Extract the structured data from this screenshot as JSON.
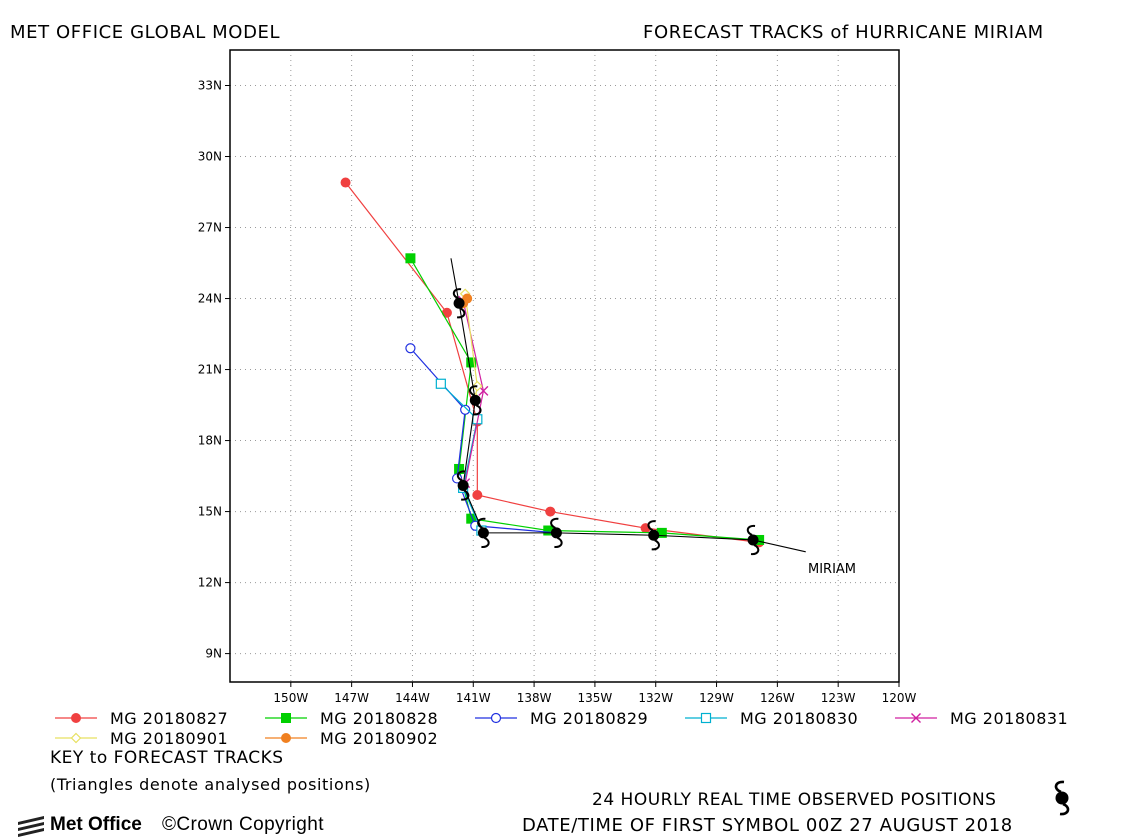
{
  "header": {
    "left_title": "MET OFFICE GLOBAL MODEL",
    "right_title": "FORECAST TRACKS of HURRICANE MIRIAM"
  },
  "map": {
    "storm_label": "MIRIAM",
    "lat_ticks": [
      "33N",
      "30N",
      "27N",
      "24N",
      "21N",
      "18N",
      "15N",
      "12N",
      "9N"
    ],
    "lon_ticks": [
      "150W",
      "147W",
      "144W",
      "141W",
      "138W",
      "135W",
      "132W",
      "129W",
      "126W",
      "123W",
      "120W"
    ],
    "lon_range": [
      -153,
      -120
    ],
    "lat_range": [
      7.8,
      34.5
    ],
    "grid": true
  },
  "chart_data": {
    "type": "scatter",
    "xlabel": "",
    "ylabel": "",
    "xlim": [
      -153,
      -120
    ],
    "ylim": [
      7.8,
      34.5
    ],
    "observed": {
      "color": "#000000",
      "points": [
        {
          "lon": -127.2,
          "lat": 13.8
        },
        {
          "lon": -132.1,
          "lat": 14.0
        },
        {
          "lon": -136.9,
          "lat": 14.1
        },
        {
          "lon": -140.5,
          "lat": 14.1
        },
        {
          "lon": -141.5,
          "lat": 16.1
        },
        {
          "lon": -140.9,
          "lat": 19.7
        },
        {
          "lon": -141.7,
          "lat": 23.8
        }
      ],
      "tail_start": {
        "lon": -142.1,
        "lat": 25.7
      }
    },
    "series": [
      {
        "name": "MG 20180827",
        "color": "#f04040",
        "marker": "filled-circle",
        "points": [
          {
            "lon": -126.9,
            "lat": 13.7
          },
          {
            "lon": -132.5,
            "lat": 14.3
          },
          {
            "lon": -137.2,
            "lat": 15.0
          },
          {
            "lon": -140.8,
            "lat": 15.7
          },
          {
            "lon": -140.8,
            "lat": 18.8
          },
          {
            "lon": -142.3,
            "lat": 23.4
          },
          {
            "lon": -147.3,
            "lat": 28.9
          }
        ]
      },
      {
        "name": "MG 20180828",
        "color": "#00d000",
        "marker": "filled-square",
        "points": [
          {
            "lon": -126.9,
            "lat": 13.8
          },
          {
            "lon": -131.7,
            "lat": 14.1
          },
          {
            "lon": -137.3,
            "lat": 14.2
          },
          {
            "lon": -141.1,
            "lat": 14.7
          },
          {
            "lon": -141.7,
            "lat": 16.8
          },
          {
            "lon": -141.1,
            "lat": 21.3
          },
          {
            "lon": -144.1,
            "lat": 25.7
          }
        ]
      },
      {
        "name": "MG 20180829",
        "color": "#2030e0",
        "marker": "open-circle",
        "points": [
          {
            "lon": -136.9,
            "lat": 14.1
          },
          {
            "lon": -140.9,
            "lat": 14.4
          },
          {
            "lon": -141.8,
            "lat": 16.4
          },
          {
            "lon": -141.4,
            "lat": 19.3
          },
          {
            "lon": -144.1,
            "lat": 21.9
          }
        ]
      },
      {
        "name": "MG 20180830",
        "color": "#00b0d0",
        "marker": "open-square",
        "points": [
          {
            "lon": -140.6,
            "lat": 14.2
          },
          {
            "lon": -141.5,
            "lat": 16.0
          },
          {
            "lon": -140.8,
            "lat": 18.9
          },
          {
            "lon": -142.6,
            "lat": 20.4
          }
        ]
      },
      {
        "name": "MG 20180831",
        "color": "#d020a0",
        "marker": "x",
        "points": [
          {
            "lon": -141.4,
            "lat": 16.2
          },
          {
            "lon": -140.5,
            "lat": 20.1
          },
          {
            "lon": -141.5,
            "lat": 23.9
          }
        ]
      },
      {
        "name": "MG 20180901",
        "color": "#e8e060",
        "marker": "open-diamond",
        "points": [
          {
            "lon": -140.9,
            "lat": 19.8
          },
          {
            "lon": -140.8,
            "lat": 20.3
          },
          {
            "lon": -141.4,
            "lat": 24.2
          }
        ]
      },
      {
        "name": "MG 20180902",
        "color": "#f08020",
        "marker": "filled-circle",
        "points": [
          {
            "lon": -141.5,
            "lat": 23.8
          },
          {
            "lon": -141.3,
            "lat": 24.0
          }
        ]
      }
    ]
  },
  "key": {
    "title": "KEY to FORECAST TRACKS",
    "note": "(Triangles denote analysed positions)"
  },
  "footer": {
    "observed_note": "24 HOURLY REAL TIME OBSERVED POSITIONS",
    "datetime_note": "DATE/TIME OF FIRST SYMBOL 00Z 27 AUGUST 2018",
    "logo_text": "Met Office",
    "copyright": "©Crown Copyright"
  }
}
